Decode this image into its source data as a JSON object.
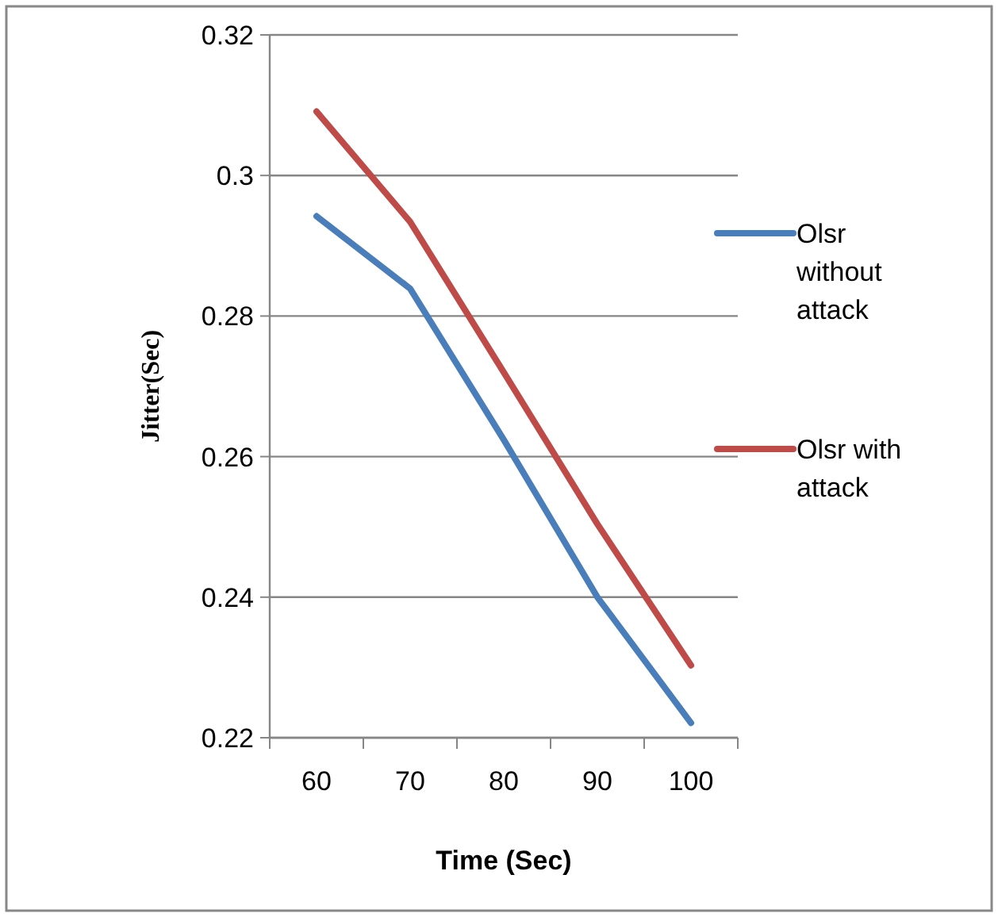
{
  "chart_data": {
    "type": "line",
    "xlabel": "Time (Sec)",
    "ylabel": "Jitter(Sec)",
    "categories": [
      "60",
      "70",
      "80",
      "90",
      "100"
    ],
    "series": [
      {
        "name": "Olsr without attack",
        "color": "#4a7ebb",
        "values": [
          0.2942,
          0.2839,
          0.2624,
          0.24,
          0.2221
        ]
      },
      {
        "name": "Olsr with attack",
        "color": "#be4b48",
        "values": [
          0.3091,
          0.2934,
          0.272,
          0.2504,
          0.2303
        ]
      }
    ],
    "ylim": [
      0.22,
      0.32
    ],
    "yticks": [
      0.22,
      0.24,
      0.26,
      0.28,
      0.3,
      0.32
    ],
    "grid": "y",
    "legend": "right",
    "marker": "none",
    "line_style": "solid"
  }
}
